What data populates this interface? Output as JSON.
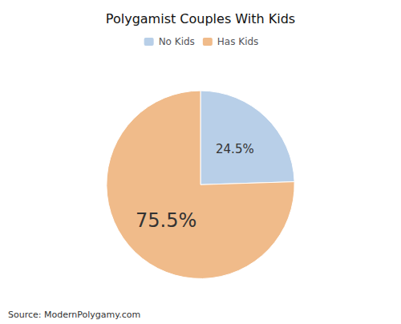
{
  "chart_data": {
    "type": "pie",
    "title": "Polygamist Couples With Kids",
    "categories": [
      "No Kids",
      "Has Kids"
    ],
    "values": [
      24.5,
      75.5
    ],
    "value_labels": [
      "24.5%",
      "75.5%"
    ],
    "data_labels": true,
    "colors": [
      "#b8cfe8",
      "#f0bb8a"
    ],
    "legend": "top",
    "annotations": [
      "Source: ModernPolygamy.com"
    ]
  }
}
